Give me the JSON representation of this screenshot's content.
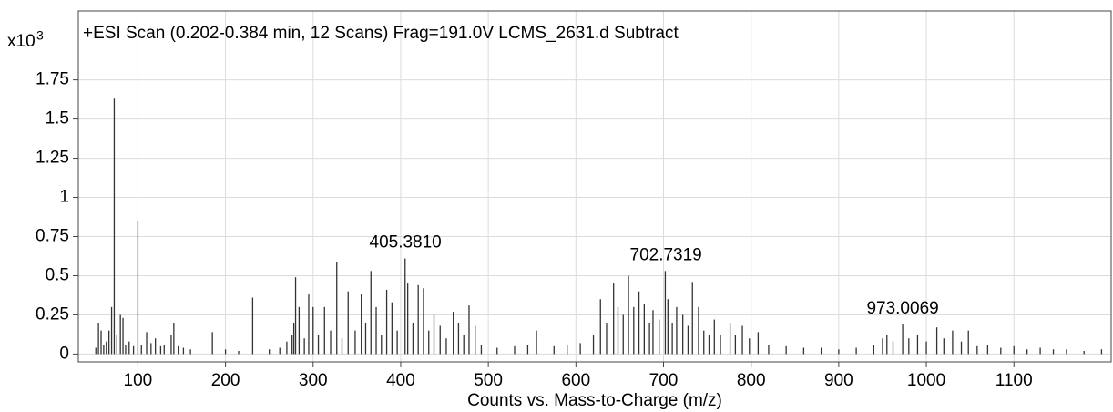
{
  "chart_data": {
    "type": "bar",
    "title": "+ESI Scan (0.202-0.384 min, 12 Scans) Frag=191.0V LCMS_2631.d  Subtract",
    "x_label": "Counts vs. Mass-to-Charge (m/z)",
    "y_multiplier": "x10",
    "y_exponent": "3",
    "color": "#333333",
    "grid": true,
    "xlim": [
      32,
      1211
    ],
    "ylim": [
      -0.05,
      2.19
    ],
    "xticks": [
      100,
      200,
      300,
      400,
      500,
      600,
      700,
      800,
      900,
      1000,
      1100
    ],
    "yticks": [
      0,
      0.25,
      0.5,
      0.75,
      1,
      1.25,
      1.5,
      1.75
    ],
    "x": [
      52,
      55,
      58,
      61,
      64,
      67,
      70,
      73,
      76,
      80,
      83,
      86,
      90,
      95,
      100,
      104,
      110,
      115,
      120,
      126,
      130,
      138,
      141,
      146,
      152,
      160,
      185,
      200,
      215,
      231,
      250,
      262,
      270,
      276,
      278,
      280,
      284,
      290,
      295,
      300,
      306,
      313,
      320,
      327,
      333,
      340,
      348,
      355,
      360,
      366,
      372,
      378,
      384,
      390,
      396,
      405,
      408,
      414,
      420,
      426,
      432,
      438,
      445,
      452,
      460,
      466,
      472,
      478,
      485,
      492,
      510,
      530,
      545,
      555,
      575,
      590,
      605,
      620,
      628,
      635,
      643,
      648,
      654,
      660,
      666,
      672,
      678,
      684,
      688,
      695,
      702,
      705,
      710,
      715,
      722,
      728,
      733,
      740,
      746,
      752,
      758,
      765,
      776,
      782,
      790,
      798,
      808,
      820,
      840,
      860,
      880,
      900,
      920,
      940,
      950,
      955,
      962,
      973,
      980,
      990,
      1000,
      1012,
      1020,
      1030,
      1040,
      1048,
      1058,
      1070,
      1085,
      1100,
      1115,
      1130,
      1145,
      1160,
      1180,
      1200
    ],
    "values": [
      0.04,
      0.2,
      0.15,
      0.06,
      0.08,
      0.15,
      0.3,
      1.63,
      0.12,
      0.25,
      0.23,
      0.06,
      0.08,
      0.05,
      0.85,
      0.06,
      0.14,
      0.07,
      0.1,
      0.05,
      0.06,
      0.12,
      0.2,
      0.05,
      0.04,
      0.03,
      0.14,
      0.03,
      0.02,
      0.36,
      0.03,
      0.04,
      0.08,
      0.12,
      0.2,
      0.49,
      0.3,
      0.1,
      0.38,
      0.3,
      0.12,
      0.3,
      0.15,
      0.59,
      0.1,
      0.4,
      0.15,
      0.38,
      0.2,
      0.53,
      0.3,
      0.12,
      0.41,
      0.33,
      0.15,
      0.61,
      0.45,
      0.2,
      0.44,
      0.42,
      0.15,
      0.25,
      0.18,
      0.1,
      0.27,
      0.2,
      0.12,
      0.31,
      0.18,
      0.06,
      0.04,
      0.05,
      0.06,
      0.15,
      0.05,
      0.06,
      0.07,
      0.12,
      0.35,
      0.2,
      0.45,
      0.3,
      0.25,
      0.5,
      0.3,
      0.4,
      0.32,
      0.2,
      0.28,
      0.22,
      0.53,
      0.35,
      0.2,
      0.3,
      0.25,
      0.18,
      0.46,
      0.3,
      0.15,
      0.12,
      0.22,
      0.12,
      0.2,
      0.12,
      0.18,
      0.1,
      0.14,
      0.06,
      0.05,
      0.04,
      0.04,
      0.03,
      0.04,
      0.06,
      0.1,
      0.12,
      0.08,
      0.19,
      0.1,
      0.12,
      0.08,
      0.17,
      0.1,
      0.15,
      0.08,
      0.15,
      0.05,
      0.06,
      0.04,
      0.05,
      0.03,
      0.04,
      0.03,
      0.03,
      0.02,
      0.03
    ],
    "annotations": [
      {
        "label": "405.3810",
        "x": 405.381
      },
      {
        "label": "702.7319",
        "x": 702.7319
      },
      {
        "label": "973.0069",
        "x": 973.0069
      }
    ]
  }
}
